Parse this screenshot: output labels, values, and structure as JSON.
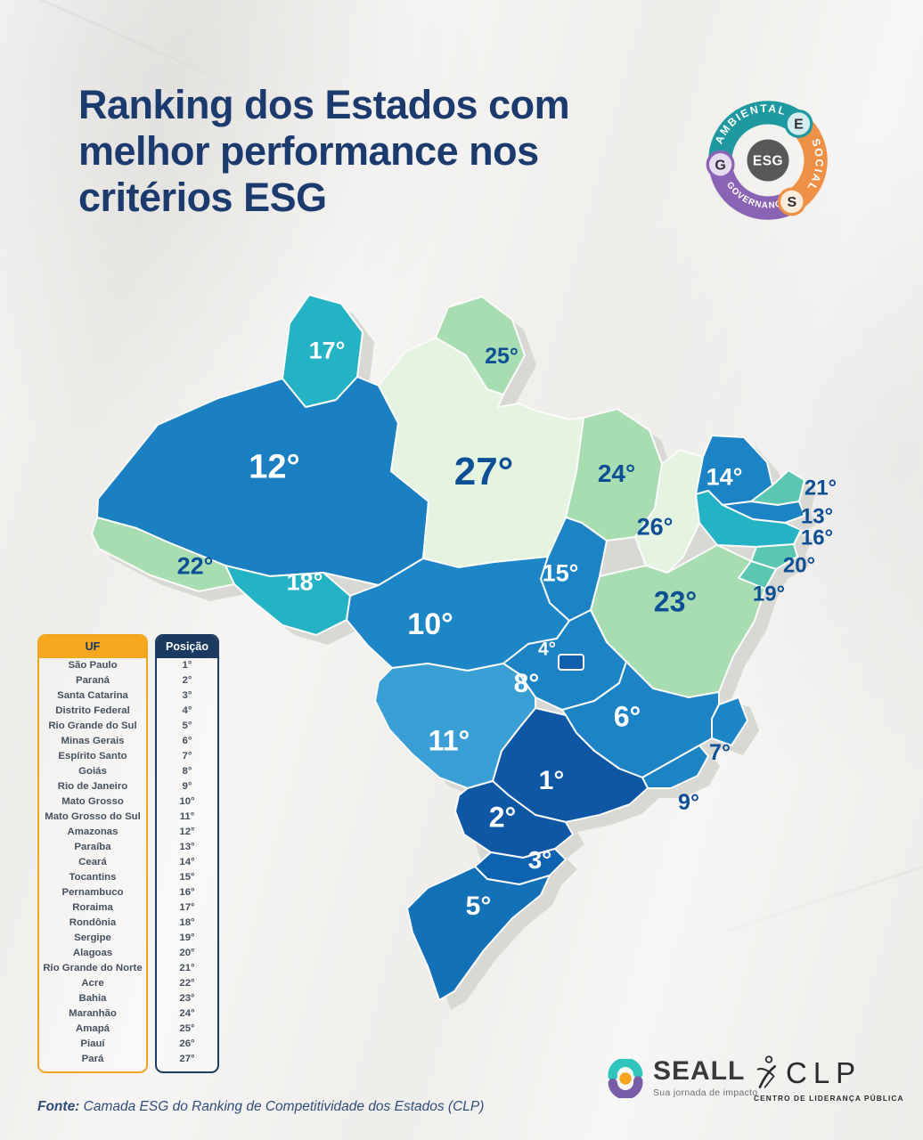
{
  "title": {
    "lines": [
      "Ranking dos Estados com",
      "melhor performance nos",
      "critérios ESG"
    ]
  },
  "esg_badge": {
    "center": "ESG",
    "center_bg": "#58585a",
    "segments": [
      {
        "id": "ambiental",
        "label": "AMBIENTAL",
        "letter": "E",
        "arc_color": "#1e99a0",
        "bubble_bg": "#d4ebf0"
      },
      {
        "id": "social",
        "label": "SOCIAL",
        "letter": "S",
        "arc_color": "#ee9147",
        "bubble_bg": "#f8eddc"
      },
      {
        "id": "governanca",
        "label": "GOVERNANÇA",
        "letter": "G",
        "arc_color": "#8a63b5",
        "bubble_bg": "#e6dcf1"
      }
    ]
  },
  "map": {
    "region": "Brasil",
    "shadow_color": "#d8d8d5",
    "states": [
      {
        "code": "SP",
        "name": "São Paulo",
        "label": "1°",
        "color": "#0d57a5",
        "text_color": "#ffffff"
      },
      {
        "code": "PR",
        "name": "Paraná",
        "label": "2°",
        "color": "#0d57a5",
        "text_color": "#ffffff"
      },
      {
        "code": "SC",
        "name": "Santa Catarina",
        "label": "3°",
        "color": "#0e63b0",
        "text_color": "#ffffff"
      },
      {
        "code": "DF",
        "name": "Distrito Federal",
        "label": "4°",
        "color": "#0f5fae",
        "text_color": "#ffffff"
      },
      {
        "code": "RS",
        "name": "Rio Grande do Sul",
        "label": "5°",
        "color": "#1371b8",
        "text_color": "#ffffff"
      },
      {
        "code": "MG",
        "name": "Minas Gerais",
        "label": "6°",
        "color": "#1c84c5",
        "text_color": "#ffffff"
      },
      {
        "code": "ES",
        "name": "Espírito Santo",
        "label": "7°",
        "color": "#1d86c8",
        "text_color": "#0d4f95"
      },
      {
        "code": "GO",
        "name": "Goiás",
        "label": "8°",
        "color": "#1c84c5",
        "text_color": "#ffffff"
      },
      {
        "code": "RJ",
        "name": "Rio de Janeiro",
        "label": "9°",
        "color": "#1c84c5",
        "text_color": "#0d4f95"
      },
      {
        "code": "MT",
        "name": "Mato Grosso",
        "label": "10°",
        "color": "#1d86c7",
        "text_color": "#ffffff"
      },
      {
        "code": "MS",
        "name": "Mato Grosso do Sul",
        "label": "11°",
        "color": "#3a9fd4",
        "text_color": "#ffffff"
      },
      {
        "code": "AM",
        "name": "Amazonas",
        "label": "12°",
        "color": "#1b80c2",
        "text_color": "#ffffff"
      },
      {
        "code": "PB",
        "name": "Paraíba",
        "label": "13°",
        "color": "#1c84c5",
        "text_color": "#0d4f95"
      },
      {
        "code": "CE",
        "name": "Ceará",
        "label": "14°",
        "color": "#1c84c5",
        "text_color": "#ffffff"
      },
      {
        "code": "TO",
        "name": "Tocantins",
        "label": "15°",
        "color": "#1c84c5",
        "text_color": "#ffffff"
      },
      {
        "code": "PE",
        "name": "Pernambuco",
        "label": "16°",
        "color": "#23b3c4",
        "text_color": "#0d4f95"
      },
      {
        "code": "RR",
        "name": "Roraima",
        "label": "17°",
        "color": "#23b3c4",
        "text_color": "#ffffff"
      },
      {
        "code": "RO",
        "name": "Rondônia",
        "label": "18°",
        "color": "#23b3c4",
        "text_color": "#ffffff"
      },
      {
        "code": "SE",
        "name": "Sergipe",
        "label": "19°",
        "color": "#5ac7b2",
        "text_color": "#0d4f95"
      },
      {
        "code": "AL",
        "name": "Alagoas",
        "label": "20°",
        "color": "#5ac7b2",
        "text_color": "#0d4f95"
      },
      {
        "code": "RN",
        "name": "Rio Grande do Norte",
        "label": "21°",
        "color": "#5ac7b2",
        "text_color": "#0d4f95"
      },
      {
        "code": "AC",
        "name": "Acre",
        "label": "22°",
        "color": "#a7ddb0",
        "text_color": "#0d4f95"
      },
      {
        "code": "BA",
        "name": "Bahia",
        "label": "23°",
        "color": "#a7ddb0",
        "text_color": "#0d4f95"
      },
      {
        "code": "MA",
        "name": "Maranhão",
        "label": "24°",
        "color": "#a7ddb0",
        "text_color": "#0d4f95"
      },
      {
        "code": "AP",
        "name": "Amapá",
        "label": "25°",
        "color": "#a7ddb0",
        "text_color": "#0d4f95"
      },
      {
        "code": "PI",
        "name": "Piauí",
        "label": "26°",
        "color": "#e4f4e1",
        "text_color": "#0d4f95"
      },
      {
        "code": "PA",
        "name": "Pará",
        "label": "27°",
        "color": "#e4f4e1",
        "text_color": "#0d4f95"
      }
    ]
  },
  "table": {
    "headers": {
      "uf": "UF",
      "pos": "Posição"
    }
  },
  "footer": {
    "source_label": "Fonte:",
    "source_text": " Camada ESG do Ranking de Competitividade dos Estados (CLP)",
    "seall": {
      "name": "SEALL",
      "tagline": "Sua jornada de impacto"
    },
    "clp": {
      "name": "CLP",
      "subtitle": "CENTRO DE LIDERANÇA PÚBLICA"
    }
  },
  "colors": {
    "background": "#f1f0ed",
    "title": "#1b3a6d",
    "sea_label": "#0d4f95",
    "table_uf_header_bg": "#f6a71e",
    "table_pos_header_bg": "#1a3a60"
  }
}
